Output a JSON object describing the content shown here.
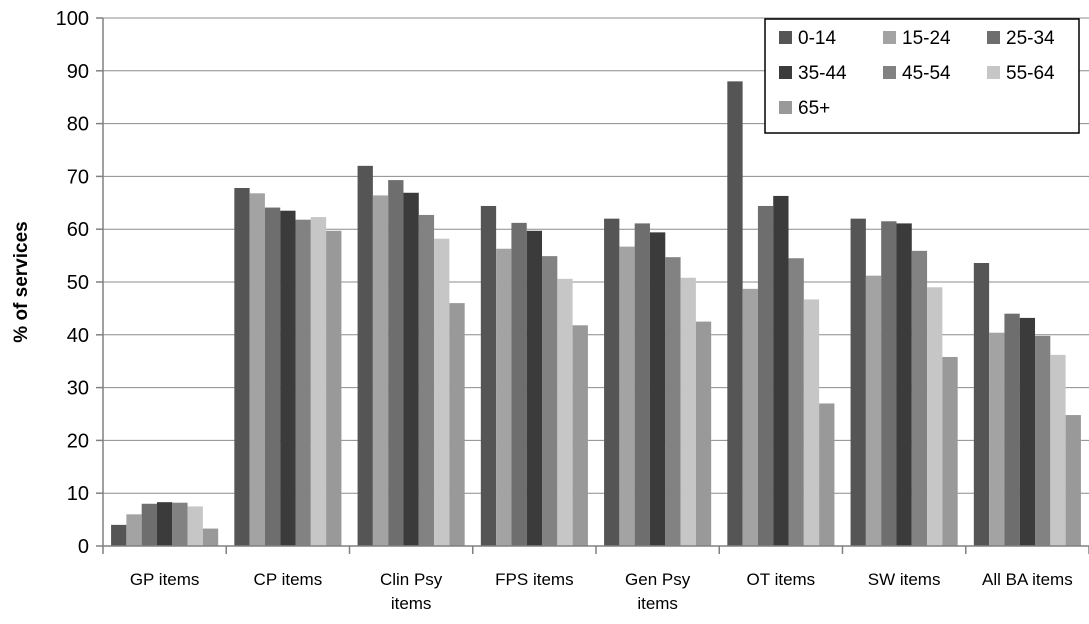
{
  "chart_data": {
    "type": "bar",
    "ylabel": "% of services",
    "xlabel": "",
    "ylim": [
      0,
      100
    ],
    "yticks": [
      0,
      10,
      20,
      30,
      40,
      50,
      60,
      70,
      80,
      90,
      100
    ],
    "grid": true,
    "legend_position": "top-right",
    "categories": [
      [
        "GP items"
      ],
      [
        "CP items"
      ],
      [
        "Clin Psy",
        "items"
      ],
      [
        "FPS items"
      ],
      [
        "Gen Psy",
        "items"
      ],
      [
        "OT items"
      ],
      [
        "SW items"
      ],
      [
        "All BA items"
      ]
    ],
    "series": [
      {
        "name": "0-14",
        "color": "#555555",
        "values": [
          4.0,
          67.8,
          72.0,
          64.4,
          62.0,
          88.0,
          62.0,
          53.6
        ]
      },
      {
        "name": "15-24",
        "color": "#a3a3a3",
        "values": [
          6.0,
          66.8,
          66.4,
          56.3,
          56.7,
          48.7,
          51.2,
          40.4
        ]
      },
      {
        "name": "25-34",
        "color": "#6e6e6e",
        "values": [
          8.0,
          64.1,
          69.3,
          61.2,
          61.1,
          64.4,
          61.5,
          44.0
        ]
      },
      {
        "name": "35-44",
        "color": "#3b3b3b",
        "values": [
          8.3,
          63.5,
          66.9,
          59.7,
          59.4,
          66.3,
          61.1,
          43.2
        ]
      },
      {
        "name": "45-54",
        "color": "#828282",
        "values": [
          8.2,
          61.8,
          62.7,
          54.9,
          54.7,
          54.5,
          55.9,
          39.8
        ]
      },
      {
        "name": "55-64",
        "color": "#c6c6c6",
        "values": [
          7.5,
          62.3,
          58.2,
          50.6,
          50.8,
          46.7,
          49.0,
          36.2
        ]
      },
      {
        "name": "65+",
        "color": "#999999",
        "values": [
          3.3,
          59.7,
          46.0,
          41.8,
          42.5,
          27.0,
          35.8,
          24.8
        ]
      }
    ]
  }
}
